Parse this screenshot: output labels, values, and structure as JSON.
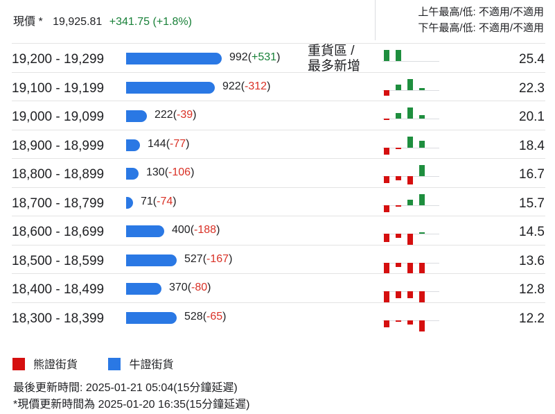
{
  "header": {
    "price_label": "現價 *",
    "price": "19,925.81",
    "change": "+341.75 (+1.8%)",
    "am_hl": "上午最高/低: 不適用/不適用",
    "pm_hl": "下午最高/低: 不適用/不適用"
  },
  "side_note": {
    "line1": "重貨區 /",
    "line2": "最多新增"
  },
  "rows": [
    {
      "range": "19,200 - 19,299",
      "count": "992",
      "delta": "+531",
      "ratio": "25.4",
      "fill": 1.0,
      "mini": [
        2,
        2,
        0,
        0
      ]
    },
    {
      "range": "19,100 - 19,199",
      "count": "922",
      "delta": "-312",
      "ratio": "22.3",
      "fill": 0.93,
      "mini": [
        -1,
        1,
        2,
        0.4
      ]
    },
    {
      "range": "19,000 - 19,099",
      "count": "222",
      "delta": "-39",
      "ratio": "20.1",
      "fill": 0.22,
      "mini": [
        -0.2,
        1,
        2,
        0.6
      ]
    },
    {
      "range": "18,900 - 18,999",
      "count": "144",
      "delta": "-77",
      "ratio": "18.4",
      "fill": 0.145,
      "mini": [
        -1.2,
        -0.2,
        2,
        1.2
      ]
    },
    {
      "range": "18,800 - 18,899",
      "count": "130",
      "delta": "-106",
      "ratio": "16.7",
      "fill": 0.13,
      "mini": [
        -1.2,
        -0.8,
        -1.5,
        2
      ]
    },
    {
      "range": "18,700 - 18,799",
      "count": "71",
      "delta": "-74",
      "ratio": "15.7",
      "fill": 0.07,
      "mini": [
        -1.2,
        -0.2,
        1,
        2
      ]
    },
    {
      "range": "18,600 - 18,699",
      "count": "400",
      "delta": "-188",
      "ratio": "14.5",
      "fill": 0.4,
      "mini": [
        -1.5,
        -0.8,
        -2,
        0.2
      ]
    },
    {
      "range": "18,500 - 18,599",
      "count": "527",
      "delta": "-167",
      "ratio": "13.6",
      "fill": 0.53,
      "mini": [
        -2,
        -0.8,
        -2,
        -2
      ]
    },
    {
      "range": "18,400 - 18,499",
      "count": "370",
      "delta": "-80",
      "ratio": "12.8",
      "fill": 0.37,
      "mini": [
        -2,
        -1.3,
        -1.3,
        -2
      ]
    },
    {
      "range": "18,300 - 18,399",
      "count": "528",
      "delta": "-65",
      "ratio": "12.2",
      "fill": 0.53,
      "mini": [
        -1.3,
        -0.2,
        -0.8,
        -2
      ]
    }
  ],
  "legend": {
    "bear": "熊證街貨",
    "bull": "牛證街貨"
  },
  "footer": {
    "updated": "最後更新時間: 2025-01-21 05:04(15分鐘延遲)",
    "price_updated": "*現價更新時間為 2025-01-20 16:35(15分鐘延遲)"
  },
  "colors": {
    "bull": "#2a78e4",
    "bear": "#d50f0f",
    "up": "#188038",
    "down": "#d93025",
    "green_bar": "#1e8e3e"
  }
}
